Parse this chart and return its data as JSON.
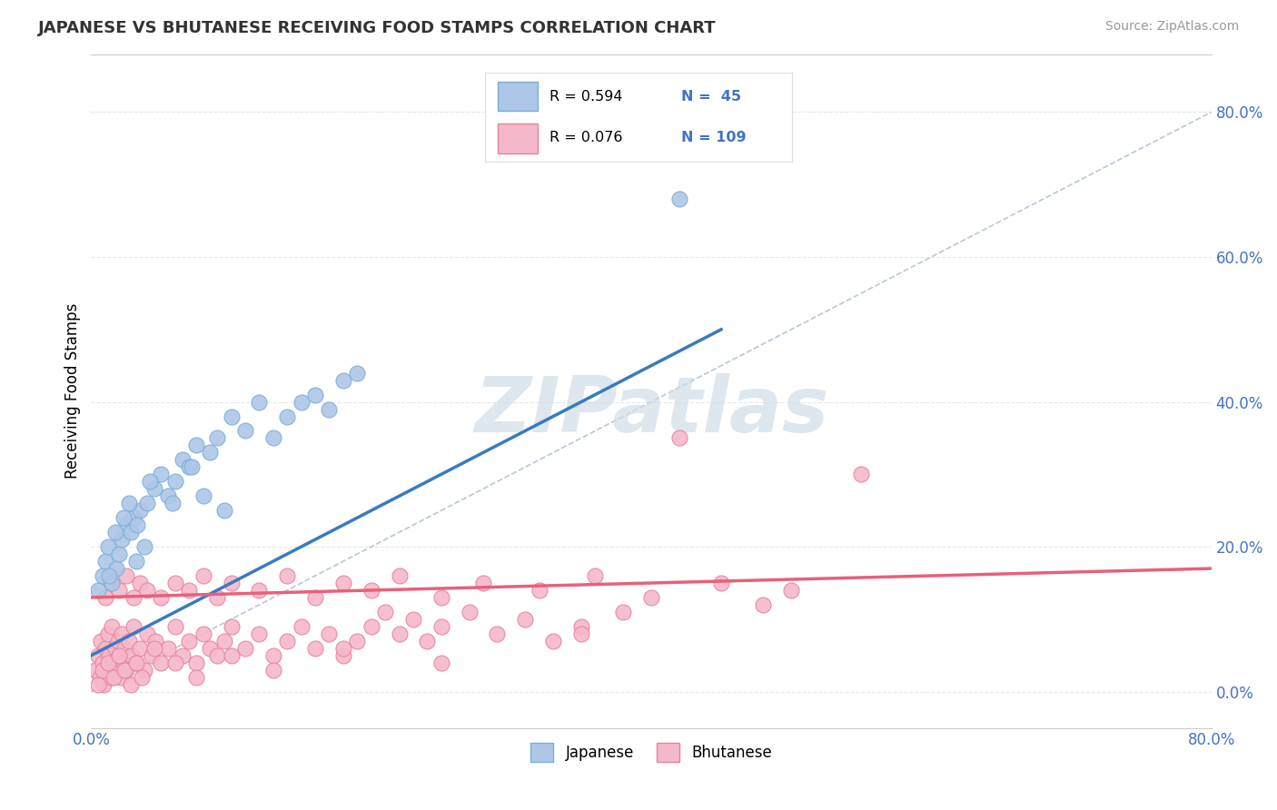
{
  "title": "JAPANESE VS BHUTANESE RECEIVING FOOD STAMPS CORRELATION CHART",
  "source": "Source: ZipAtlas.com",
  "ylabel": "Receiving Food Stamps",
  "ytick_vals": [
    0,
    20,
    40,
    60,
    80
  ],
  "xlim": [
    0,
    80
  ],
  "ylim": [
    -5,
    88
  ],
  "japanese_R": 0.594,
  "japanese_N": 45,
  "bhutanese_R": 0.076,
  "bhutanese_N": 109,
  "japanese_color": "#aec6e8",
  "bhutanese_color": "#f5b8cb",
  "japanese_edge": "#7aafd4",
  "bhutanese_edge": "#e8829a",
  "trendline_japanese_color": "#3a7abf",
  "trendline_bhutanese_color": "#e8607a",
  "ref_line_color": "#b8c8d8",
  "watermark": "ZIPatlas",
  "watermark_color": "#d0dce8",
  "background_color": "#ffffff",
  "grid_color": "#e8e8e8",
  "legend_R_color": "#4472c4",
  "japanese_x": [
    0.5,
    0.8,
    1.0,
    1.2,
    1.5,
    1.8,
    2.0,
    2.2,
    2.5,
    2.8,
    3.0,
    3.2,
    3.5,
    3.8,
    4.0,
    4.5,
    5.0,
    5.5,
    6.0,
    6.5,
    7.0,
    7.5,
    8.0,
    8.5,
    9.0,
    10.0,
    11.0,
    12.0,
    13.0,
    14.0,
    15.0,
    16.0,
    17.0,
    18.0,
    19.0,
    42.0,
    1.3,
    1.7,
    2.3,
    2.7,
    3.3,
    4.2,
    5.8,
    7.2,
    9.5
  ],
  "japanese_y": [
    14.0,
    16.0,
    18.0,
    20.0,
    15.0,
    17.0,
    19.0,
    21.0,
    23.0,
    22.0,
    24.0,
    18.0,
    25.0,
    20.0,
    26.0,
    28.0,
    30.0,
    27.0,
    29.0,
    32.0,
    31.0,
    34.0,
    27.0,
    33.0,
    35.0,
    38.0,
    36.0,
    40.0,
    35.0,
    38.0,
    40.0,
    41.0,
    39.0,
    43.0,
    44.0,
    68.0,
    16.0,
    22.0,
    24.0,
    26.0,
    23.0,
    29.0,
    26.0,
    31.0,
    25.0
  ],
  "bhutanese_x": [
    0.3,
    0.5,
    0.6,
    0.7,
    0.8,
    0.9,
    1.0,
    1.1,
    1.2,
    1.3,
    1.4,
    1.5,
    1.6,
    1.7,
    1.8,
    1.9,
    2.0,
    2.1,
    2.2,
    2.3,
    2.4,
    2.5,
    2.7,
    2.9,
    3.0,
    3.2,
    3.5,
    3.8,
    4.0,
    4.3,
    4.6,
    5.0,
    5.5,
    6.0,
    6.5,
    7.0,
    7.5,
    8.0,
    8.5,
    9.0,
    9.5,
    10.0,
    11.0,
    12.0,
    13.0,
    14.0,
    15.0,
    16.0,
    17.0,
    18.0,
    19.0,
    20.0,
    21.0,
    22.0,
    23.0,
    24.0,
    25.0,
    27.0,
    29.0,
    31.0,
    33.0,
    35.0,
    38.0,
    42.0,
    48.0,
    55.0,
    1.0,
    1.5,
    2.0,
    2.5,
    3.0,
    3.5,
    4.0,
    5.0,
    6.0,
    7.0,
    8.0,
    9.0,
    10.0,
    12.0,
    14.0,
    16.0,
    18.0,
    20.0,
    22.0,
    25.0,
    28.0,
    32.0,
    36.0,
    40.0,
    45.0,
    50.0,
    0.5,
    0.8,
    1.2,
    1.6,
    2.0,
    2.4,
    2.8,
    3.2,
    3.6,
    4.5,
    6.0,
    7.5,
    10.0,
    13.0,
    18.0,
    25.0,
    35.0
  ],
  "bhutanese_y": [
    3.0,
    5.0,
    2.0,
    7.0,
    4.0,
    1.0,
    6.0,
    3.0,
    8.0,
    5.0,
    2.0,
    9.0,
    4.0,
    6.0,
    3.0,
    7.0,
    5.0,
    2.0,
    8.0,
    4.0,
    6.0,
    3.0,
    7.0,
    5.0,
    9.0,
    4.0,
    6.0,
    3.0,
    8.0,
    5.0,
    7.0,
    4.0,
    6.0,
    9.0,
    5.0,
    7.0,
    4.0,
    8.0,
    6.0,
    5.0,
    7.0,
    9.0,
    6.0,
    8.0,
    5.0,
    7.0,
    9.0,
    6.0,
    8.0,
    5.0,
    7.0,
    9.0,
    11.0,
    8.0,
    10.0,
    7.0,
    9.0,
    11.0,
    8.0,
    10.0,
    7.0,
    9.0,
    11.0,
    35.0,
    12.0,
    30.0,
    13.0,
    15.0,
    14.0,
    16.0,
    13.0,
    15.0,
    14.0,
    13.0,
    15.0,
    14.0,
    16.0,
    13.0,
    15.0,
    14.0,
    16.0,
    13.0,
    15.0,
    14.0,
    16.0,
    13.0,
    15.0,
    14.0,
    16.0,
    13.0,
    15.0,
    14.0,
    1.0,
    3.0,
    4.0,
    2.0,
    5.0,
    3.0,
    1.0,
    4.0,
    2.0,
    6.0,
    4.0,
    2.0,
    5.0,
    3.0,
    6.0,
    4.0,
    8.0
  ]
}
